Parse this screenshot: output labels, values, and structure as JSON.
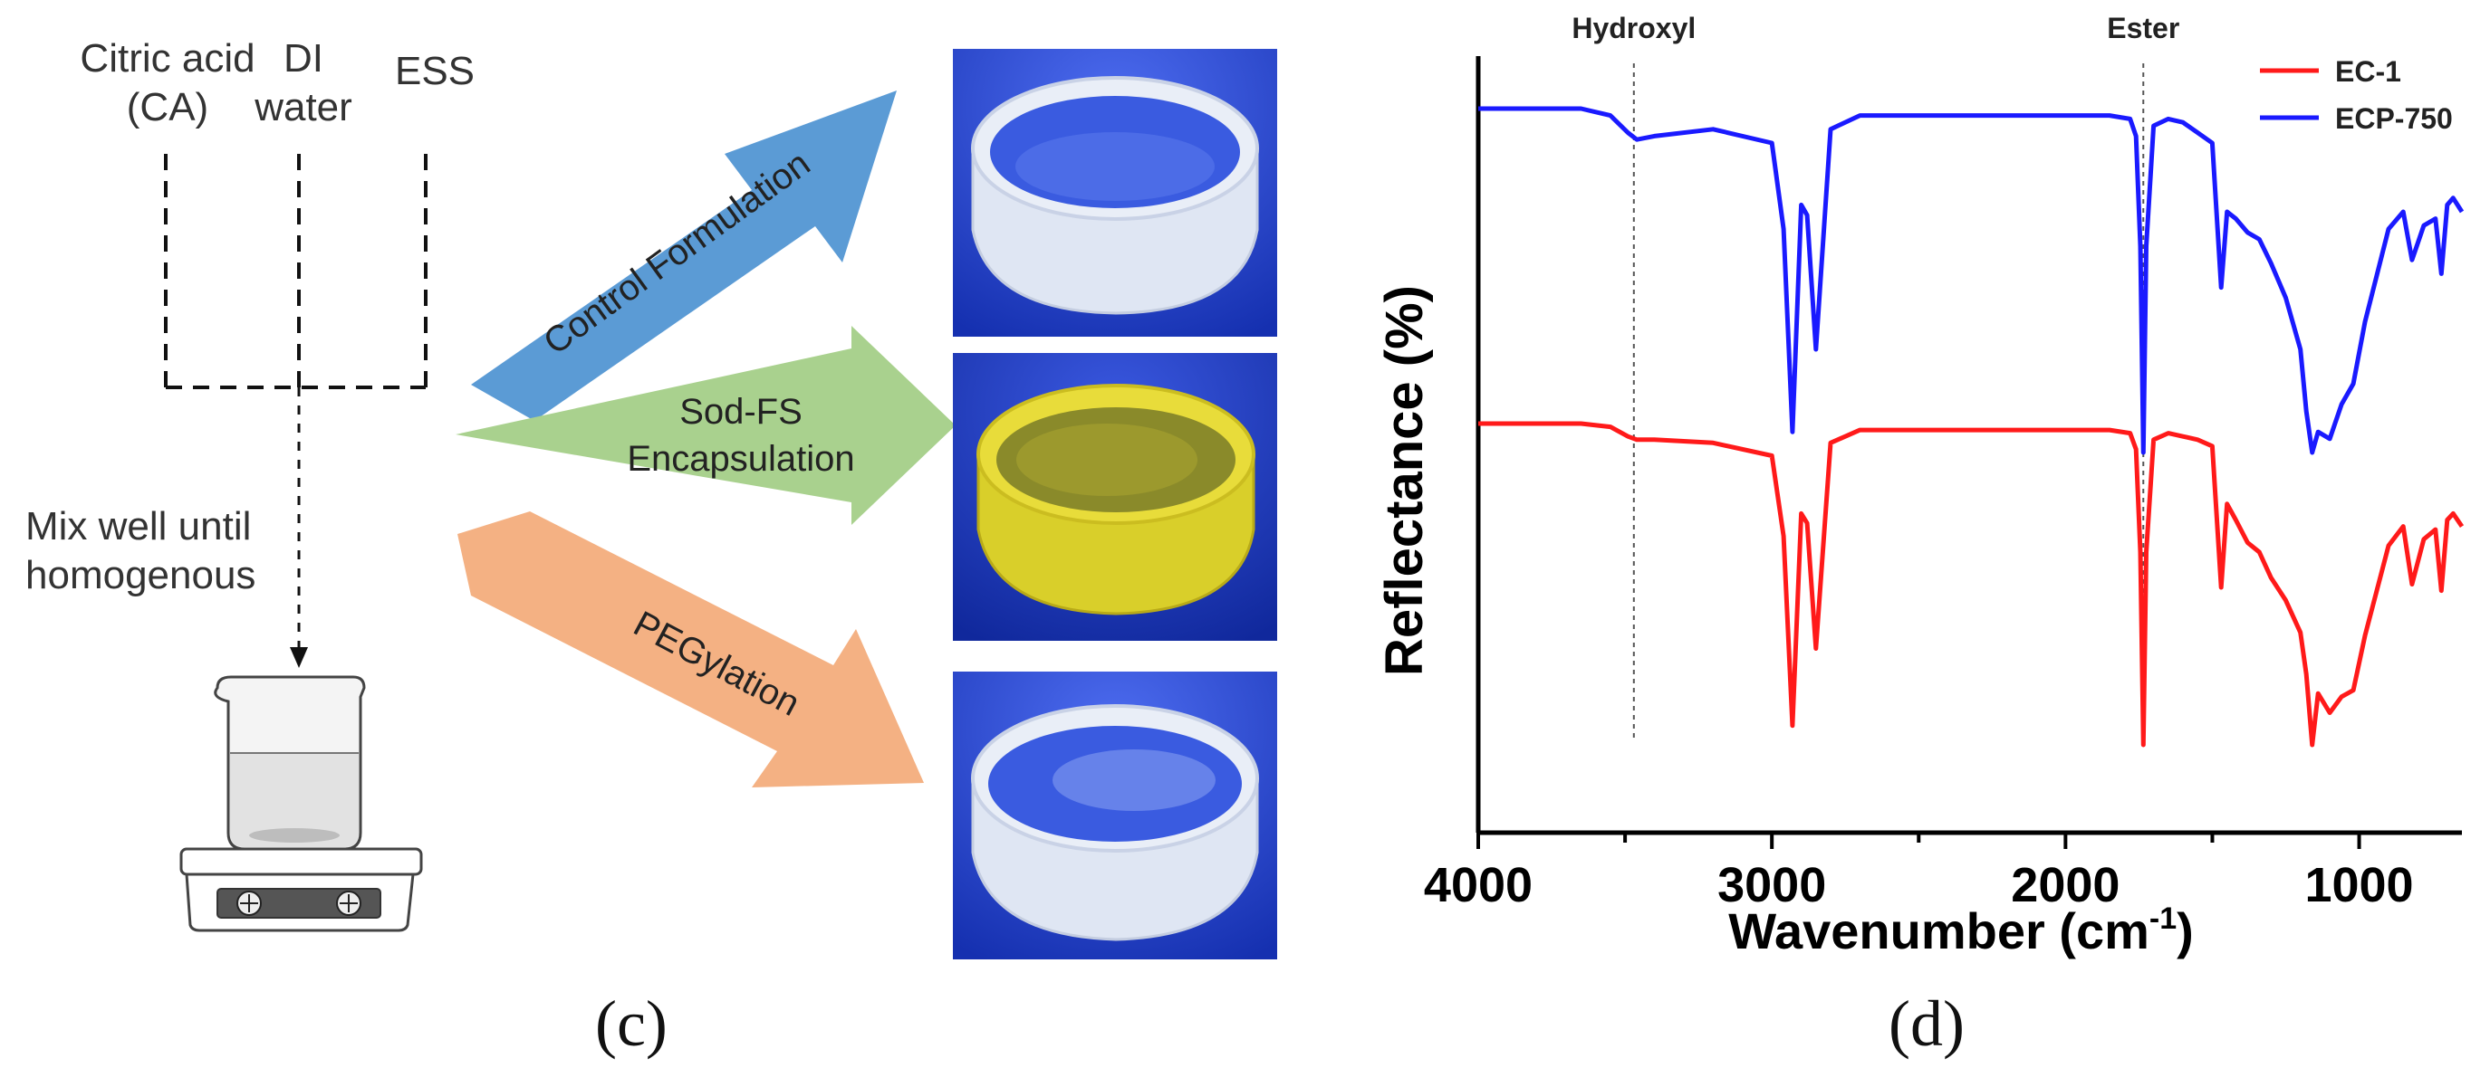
{
  "panel_c": {
    "letter": "(c)",
    "inputs": [
      {
        "line1": "Citric acid",
        "line2": "(CA)"
      },
      {
        "line1": "DI",
        "line2": "water"
      },
      {
        "line1": "ESS",
        "line2": ""
      }
    ],
    "mix_label": {
      "line1": "Mix well until",
      "line2": "homogenous"
    },
    "arrows": [
      {
        "label": "Control Formulation",
        "color": "#5b9bd5"
      },
      {
        "label_line1": "Sod-FS",
        "label_line2": "Encapsulation",
        "color": "#a9d18e"
      },
      {
        "label": "PEGylation",
        "color": "#f4b183"
      }
    ],
    "photo_background": "#1f3fcf",
    "gel_colors": {
      "control": "#e9eef7",
      "sodfs": "#d9cf2a",
      "peg": "#e9eef7"
    }
  },
  "panel_d": {
    "letter": "(d)",
    "chart_data": {
      "type": "line",
      "title": "",
      "xlabel": "Wavenumber (cm",
      "xlabel_sup": "-1",
      "xlabel_close": ")",
      "ylabel": "Reflectance (%)",
      "xlim": [
        4000,
        650
      ],
      "x_reversed": true,
      "xticks": [
        "4000",
        "3000",
        "2000",
        "1000"
      ],
      "y_ticks_shown": false,
      "annotations": [
        {
          "text": "Hydroxyl",
          "x": 3470
        },
        {
          "text": "Ester",
          "x": 1735
        }
      ],
      "legend_position": "top-right",
      "series": [
        {
          "name": "EC-1",
          "color": "#ff1a1a",
          "x": [
            4000,
            3800,
            3650,
            3550,
            3490,
            3460,
            3400,
            3200,
            3000,
            2960,
            2930,
            2900,
            2880,
            2850,
            2800,
            2700,
            2400,
            2000,
            1850,
            1780,
            1760,
            1745,
            1735,
            1725,
            1700,
            1650,
            1600,
            1550,
            1500,
            1470,
            1450,
            1420,
            1380,
            1340,
            1300,
            1250,
            1200,
            1180,
            1160,
            1140,
            1100,
            1060,
            1020,
            980,
            900,
            850,
            820,
            780,
            740,
            720,
            700,
            680,
            650
          ],
          "y": [
            0.0,
            0.0,
            0.0,
            0.01,
            0.04,
            0.05,
            0.05,
            0.06,
            0.1,
            0.35,
            0.94,
            0.28,
            0.31,
            0.7,
            0.06,
            0.02,
            0.02,
            0.02,
            0.02,
            0.03,
            0.08,
            0.4,
            1.0,
            0.4,
            0.05,
            0.03,
            0.04,
            0.05,
            0.07,
            0.51,
            0.25,
            0.3,
            0.37,
            0.4,
            0.48,
            0.55,
            0.65,
            0.78,
            1.0,
            0.84,
            0.9,
            0.85,
            0.83,
            0.66,
            0.38,
            0.32,
            0.5,
            0.36,
            0.33,
            0.52,
            0.3,
            0.28,
            0.32
          ]
        },
        {
          "name": "ECP-750",
          "color": "#1a1aff",
          "x": [
            4000,
            3800,
            3650,
            3550,
            3490,
            3460,
            3400,
            3200,
            3000,
            2960,
            2930,
            2900,
            2880,
            2850,
            2800,
            2700,
            2400,
            2000,
            1850,
            1780,
            1760,
            1745,
            1735,
            1725,
            1700,
            1650,
            1600,
            1550,
            1500,
            1470,
            1450,
            1420,
            1380,
            1340,
            1300,
            1250,
            1200,
            1180,
            1160,
            1140,
            1100,
            1060,
            1020,
            980,
            900,
            850,
            820,
            780,
            740,
            720,
            700,
            680,
            650
          ],
          "y": [
            0.0,
            0.0,
            0.0,
            0.02,
            0.07,
            0.09,
            0.08,
            0.06,
            0.1,
            0.35,
            0.94,
            0.28,
            0.31,
            0.7,
            0.06,
            0.02,
            0.02,
            0.02,
            0.02,
            0.03,
            0.08,
            0.4,
            1.0,
            0.4,
            0.05,
            0.03,
            0.04,
            0.07,
            0.1,
            0.52,
            0.3,
            0.32,
            0.36,
            0.38,
            0.45,
            0.55,
            0.7,
            0.88,
            1.0,
            0.94,
            0.96,
            0.86,
            0.8,
            0.62,
            0.35,
            0.3,
            0.44,
            0.34,
            0.32,
            0.48,
            0.28,
            0.26,
            0.3
          ]
        }
      ]
    }
  }
}
